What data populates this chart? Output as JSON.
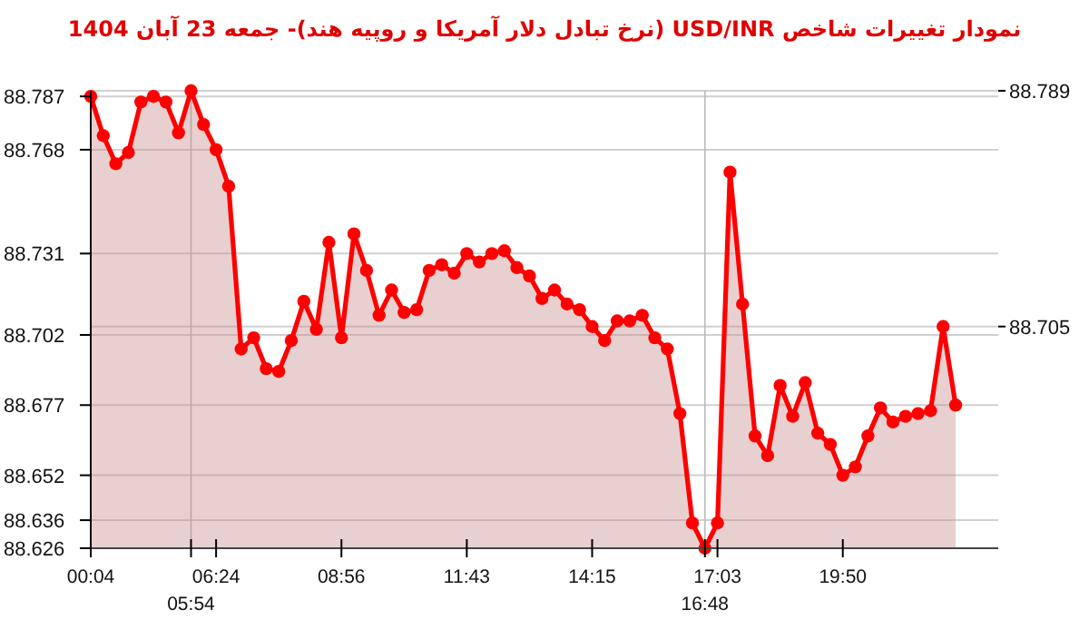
{
  "chart_data": {
    "type": "area",
    "title": "نمودار تغییرات شاخص USD/INR (نرخ تبادل دلار آمریکا و روپیه هند)- جمعه  23 آبان 1404",
    "categories": [
      "00:04",
      null,
      null,
      null,
      null,
      null,
      null,
      null,
      "05:54",
      null,
      "06:24",
      null,
      null,
      null,
      null,
      null,
      null,
      null,
      null,
      null,
      "08:56",
      null,
      null,
      null,
      null,
      null,
      null,
      null,
      null,
      null,
      "11:43",
      null,
      null,
      null,
      null,
      null,
      null,
      null,
      null,
      null,
      "14:15",
      null,
      null,
      null,
      null,
      null,
      null,
      null,
      null,
      "16:48",
      "17:03",
      null,
      null,
      null,
      null,
      null,
      null,
      null,
      null,
      null,
      "19:50",
      null,
      null,
      null,
      null,
      null,
      null,
      null,
      null,
      null
    ],
    "series": [
      {
        "color": "#ff0000",
        "values": [
          88.787,
          88.773,
          88.763,
          88.767,
          88.785,
          88.787,
          88.785,
          88.774,
          88.789,
          88.777,
          88.768,
          88.755,
          88.697,
          88.701,
          88.69,
          88.689,
          88.7,
          88.714,
          88.704,
          88.735,
          88.701,
          88.738,
          88.725,
          88.709,
          88.718,
          88.71,
          88.711,
          88.725,
          88.727,
          88.724,
          88.731,
          88.728,
          88.731,
          88.732,
          88.726,
          88.723,
          88.715,
          88.718,
          88.713,
          88.711,
          88.705,
          88.7,
          88.707,
          88.707,
          88.709,
          88.701,
          88.697,
          88.674,
          88.635,
          88.626,
          88.635,
          88.76,
          88.713,
          88.666,
          88.659,
          88.684,
          88.673,
          88.685,
          88.667,
          88.663,
          88.652,
          88.655,
          88.666,
          88.676,
          88.671,
          88.673,
          88.674,
          88.675,
          88.705,
          88.677
        ]
      }
    ],
    "ylim": [
      88.626,
      88.789
    ],
    "yticks": [
      88.626,
      88.636,
      88.652,
      88.677,
      88.702,
      88.731,
      88.768,
      88.787
    ],
    "y2lim": [
      88.626,
      88.789
    ],
    "y2ticks": [
      88.705,
      88.789
    ],
    "ref_lines": [
      {
        "axis": "x",
        "value": "05:54",
        "color": "#bbbbbb"
      },
      {
        "axis": "x",
        "value": "16:48",
        "color": "#bbbbbb"
      }
    ],
    "grid": "y",
    "marker": "circle",
    "line_style": "solid"
  }
}
